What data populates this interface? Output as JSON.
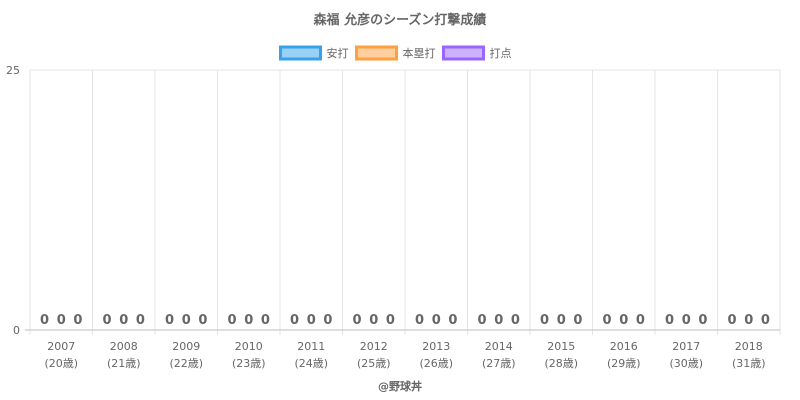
{
  "chart_data": {
    "type": "bar",
    "title": "森福 允彦のシーズン打撃成績",
    "categories": [
      "2007",
      "2008",
      "2009",
      "2010",
      "2011",
      "2012",
      "2013",
      "2014",
      "2015",
      "2016",
      "2017",
      "2018"
    ],
    "category_sublabels": [
      "(20歳)",
      "(21歳)",
      "(22歳)",
      "(23歳)",
      "(24歳)",
      "(25歳)",
      "(26歳)",
      "(27歳)",
      "(28歳)",
      "(29歳)",
      "(30歳)",
      "(31歳)"
    ],
    "series": [
      {
        "name": "安打",
        "values": [
          0,
          0,
          0,
          0,
          0,
          0,
          0,
          0,
          0,
          0,
          0,
          0
        ],
        "color": "#36a2eb",
        "fill": "#9ad0f5"
      },
      {
        "name": "本塁打",
        "values": [
          0,
          0,
          0,
          0,
          0,
          0,
          0,
          0,
          0,
          0,
          0,
          0
        ],
        "color": "#ff9f40",
        "fill": "#ffcf9f"
      },
      {
        "name": "打点",
        "values": [
          0,
          0,
          0,
          0,
          0,
          0,
          0,
          0,
          0,
          0,
          0,
          0
        ],
        "color": "#9966ff",
        "fill": "#ccb2ff"
      }
    ],
    "ylim": [
      0,
      25
    ],
    "yticks": [
      "0",
      "25"
    ],
    "grid": true,
    "legend_position": "top"
  },
  "credit": "@野球丼"
}
